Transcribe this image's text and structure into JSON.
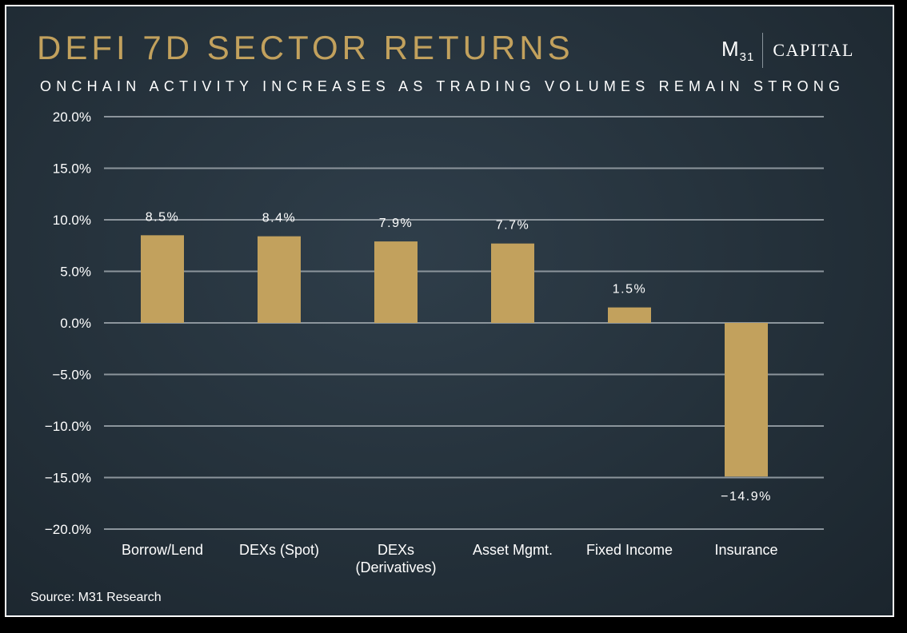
{
  "header": {
    "title": "DEFI 7D SECTOR RETURNS",
    "subtitle": "ONCHAIN ACTIVITY INCREASES AS TRADING VOLUMES REMAIN STRONG"
  },
  "logo": {
    "mark": "M",
    "mark_sub": "31",
    "name": "CAPITAL"
  },
  "footer": {
    "source": "Source: M31 Research"
  },
  "colors": {
    "bar": "#c2a15d",
    "title": "#c2a15d",
    "grid": "#8c959c",
    "text": "#ffffff"
  },
  "chart_data": {
    "type": "bar",
    "title": "DEFI 7D SECTOR RETURNS",
    "xlabel": "",
    "ylabel": "",
    "categories": [
      [
        "Borrow/Lend"
      ],
      [
        "DEXs (Spot)"
      ],
      [
        "DEXs",
        "(Derivatives)"
      ],
      [
        "Asset Mgmt."
      ],
      [
        "Fixed Income"
      ],
      [
        "Insurance"
      ]
    ],
    "values": [
      8.5,
      8.4,
      7.9,
      7.7,
      1.5,
      -14.9
    ],
    "data_labels": [
      "8.5%",
      "8.4%",
      "7.9%",
      "7.7%",
      "1.5%",
      "−14.9%"
    ],
    "ylim": [
      -20,
      20
    ],
    "yticks": [
      20,
      15,
      10,
      5,
      0,
      -5,
      -10,
      -15,
      -20
    ],
    "ytick_labels": [
      "20.0%",
      "15.0%",
      "10.0%",
      "5.0%",
      "0.0%",
      "−5.0%",
      "−10.0%",
      "−15.0%",
      "−20.0%"
    ],
    "grid": true,
    "legend": "none"
  }
}
